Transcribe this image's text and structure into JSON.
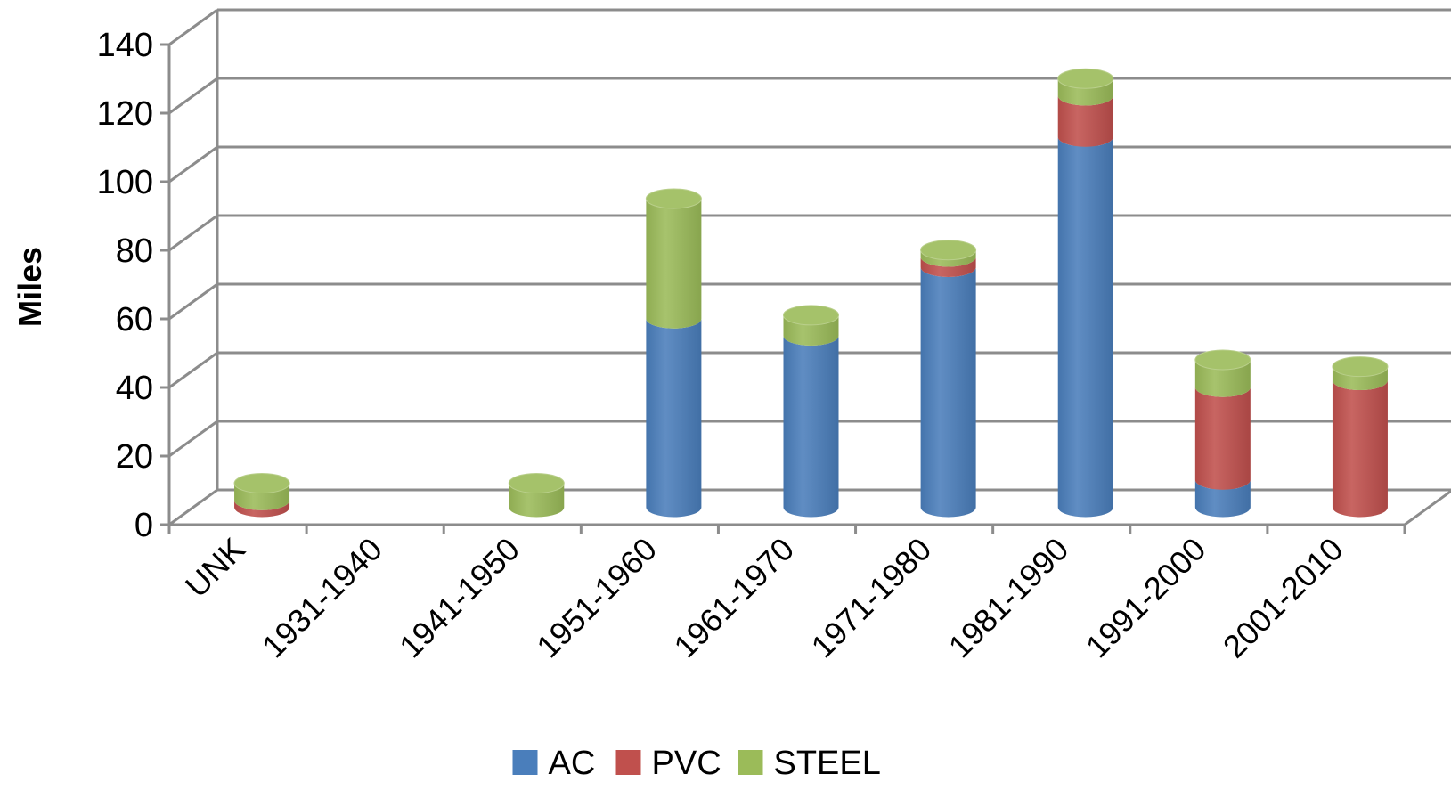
{
  "chart_data": {
    "type": "bar",
    "stacked": true,
    "style": "3d-cylinder",
    "categories": [
      "UNK",
      "1931-1940",
      "1941-1950",
      "1951-1960",
      "1961-1970",
      "1971-1980",
      "1981-1990",
      "1991-2000",
      "2001-2010"
    ],
    "series": [
      {
        "name": "AC",
        "color": "#4a7ebb",
        "values": [
          0,
          0,
          0,
          55,
          50,
          70,
          108,
          8,
          0
        ]
      },
      {
        "name": "PVC",
        "color": "#c0504d",
        "values": [
          2,
          0,
          0,
          0,
          0,
          3,
          12,
          27,
          37
        ]
      },
      {
        "name": "STEEL",
        "color": "#9bbb59",
        "values": [
          5,
          0,
          7,
          35,
          6,
          2,
          5,
          8,
          4
        ]
      }
    ],
    "title": "",
    "xlabel": "",
    "ylabel": "Miles",
    "ylim": [
      0,
      140
    ],
    "yticks": [
      0,
      20,
      40,
      60,
      80,
      100,
      120,
      140
    ],
    "grid": true,
    "legend": "bottom"
  }
}
